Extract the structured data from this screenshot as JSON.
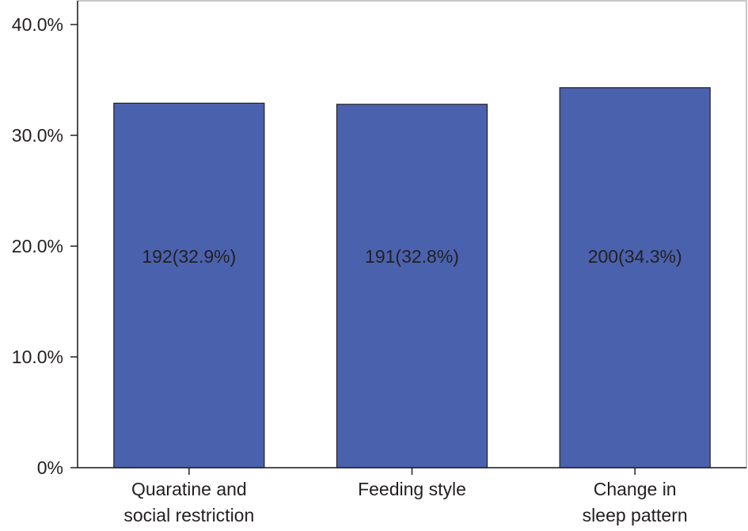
{
  "chart_data": {
    "type": "bar",
    "categories": [
      [
        "Quaratine and",
        "social restriction"
      ],
      [
        "Feeding style"
      ],
      [
        "Change in",
        "sleep pattern"
      ]
    ],
    "values": [
      32.9,
      32.8,
      34.3
    ],
    "data_labels": [
      "192(32.9%)",
      "191(32.8%)",
      "200(34.3%)"
    ],
    "ylim": [
      0,
      40
    ],
    "yticks": [
      {
        "value": 0,
        "label": "0%"
      },
      {
        "value": 10,
        "label": "10.0%"
      },
      {
        "value": 20,
        "label": "20.0%"
      },
      {
        "value": 30,
        "label": "30.0%"
      },
      {
        "value": 40,
        "label": "40.0%"
      }
    ],
    "colors": {
      "bar": "#4a62ad",
      "bar_stroke": "#231f20",
      "axis": "#231f20",
      "frame": "#b5b5b5"
    },
    "grid": false
  }
}
